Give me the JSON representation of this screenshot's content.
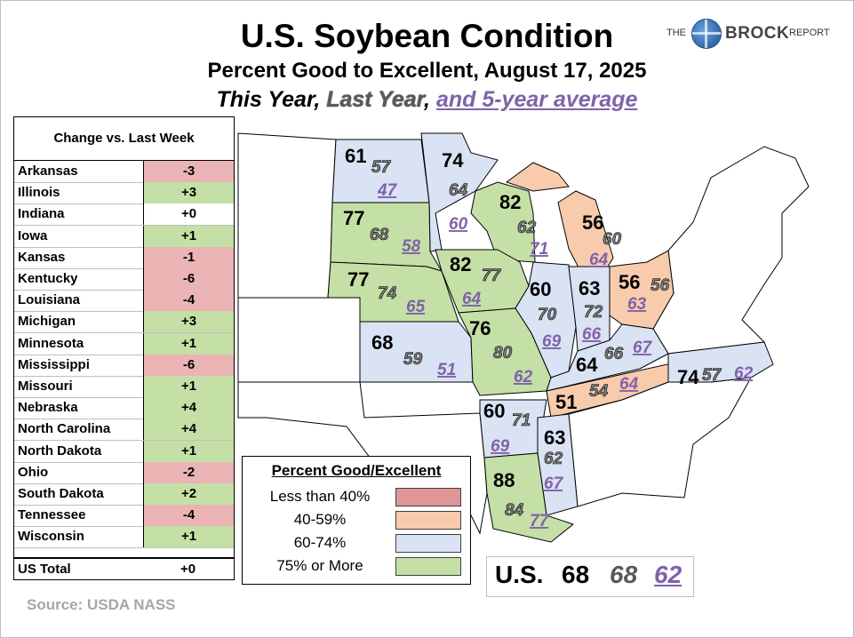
{
  "header": {
    "title": "U.S. Soybean Condition",
    "subtitle": "Percent Good to Excellent, August 17, 2025",
    "series_this_year": "This Year",
    "series_last_year": "Last Year",
    "series_avg": "and 5-year average",
    "comma1": ",",
    "comma2": ","
  },
  "logo": {
    "the": "THE",
    "name": "BROCK",
    "report": "REPORT",
    "icon": "globe-icon"
  },
  "table": {
    "header": "Change vs. Last Week",
    "rows": [
      {
        "state": "Arkansas",
        "change": "-3"
      },
      {
        "state": "Illinois",
        "change": "+3"
      },
      {
        "state": "Indiana",
        "change": "+0"
      },
      {
        "state": "Iowa",
        "change": "+1"
      },
      {
        "state": "Kansas",
        "change": "-1"
      },
      {
        "state": "Kentucky",
        "change": "-6"
      },
      {
        "state": "Louisiana",
        "change": "-4"
      },
      {
        "state": "Michigan",
        "change": "+3"
      },
      {
        "state": "Minnesota",
        "change": "+1"
      },
      {
        "state": "Mississippi",
        "change": "-6"
      },
      {
        "state": "Missouri",
        "change": "+1"
      },
      {
        "state": "Nebraska",
        "change": "+4"
      },
      {
        "state": "North Carolina",
        "change": "+4"
      },
      {
        "state": "North Dakota",
        "change": "+1"
      },
      {
        "state": "Ohio",
        "change": "-2"
      },
      {
        "state": "South Dakota",
        "change": "+2"
      },
      {
        "state": "Tennessee",
        "change": "-4"
      },
      {
        "state": "Wisconsin",
        "change": "+1"
      }
    ],
    "total_label": "US Total",
    "total_change": "+0"
  },
  "colors": {
    "lt40": "#de9697",
    "c40_59": "#f8cbad",
    "c60_74": "#dae3f3",
    "c75": "#c5e0a6",
    "neg": "#eab3b4",
    "pos": "#c5e0a6",
    "zero": "#ffffff",
    "avg": "#7f63a8"
  },
  "legend": {
    "title": "Percent Good/Excellent",
    "items": [
      "Less than 40%",
      "40-59%",
      "60-74%",
      "75% or More"
    ]
  },
  "us_total": {
    "label": "U.S.",
    "this_year": "68",
    "last_year": "68",
    "avg": "62"
  },
  "source": "Source: USDA NASS",
  "chart_data": {
    "type": "table",
    "states": [
      {
        "state": "North Dakota",
        "this_year": 61,
        "last_year": 57,
        "avg5": 47,
        "category": "60-74%"
      },
      {
        "state": "Minnesota",
        "this_year": 74,
        "last_year": 64,
        "avg5": 60,
        "category": "60-74%"
      },
      {
        "state": "South Dakota",
        "this_year": 77,
        "last_year": 68,
        "avg5": 58,
        "category": "75% or More"
      },
      {
        "state": "Wisconsin",
        "this_year": 82,
        "last_year": 62,
        "avg5": 71,
        "category": "75% or More"
      },
      {
        "state": "Michigan",
        "this_year": 56,
        "last_year": 60,
        "avg5": 64,
        "category": "40-59%"
      },
      {
        "state": "Nebraska",
        "this_year": 77,
        "last_year": 74,
        "avg5": 65,
        "category": "75% or More"
      },
      {
        "state": "Iowa",
        "this_year": 82,
        "last_year": 77,
        "avg5": 64,
        "category": "75% or More"
      },
      {
        "state": "Illinois",
        "this_year": 60,
        "last_year": 70,
        "avg5": 69,
        "category": "60-74%"
      },
      {
        "state": "Indiana",
        "this_year": 63,
        "last_year": 72,
        "avg5": 66,
        "category": "60-74%"
      },
      {
        "state": "Ohio",
        "this_year": 56,
        "last_year": 56,
        "avg5": 63,
        "category": "40-59%"
      },
      {
        "state": "Kansas",
        "this_year": 68,
        "last_year": 59,
        "avg5": 51,
        "category": "60-74%"
      },
      {
        "state": "Missouri",
        "this_year": 76,
        "last_year": 80,
        "avg5": 62,
        "category": "75% or More"
      },
      {
        "state": "Kentucky",
        "this_year": 64,
        "last_year": 66,
        "avg5": 67,
        "category": "60-74%"
      },
      {
        "state": "Tennessee",
        "this_year": 51,
        "last_year": 54,
        "avg5": 64,
        "category": "40-59%"
      },
      {
        "state": "North Carolina",
        "this_year": 74,
        "last_year": 57,
        "avg5": 62,
        "category": "60-74%"
      },
      {
        "state": "Arkansas",
        "this_year": 60,
        "last_year": 71,
        "avg5": 69,
        "category": "60-74%"
      },
      {
        "state": "Mississippi",
        "this_year": 63,
        "last_year": 62,
        "avg5": 67,
        "category": "60-74%"
      },
      {
        "state": "Louisiana",
        "this_year": 88,
        "last_year": 84,
        "avg5": 77,
        "category": "75% or More"
      }
    ]
  }
}
